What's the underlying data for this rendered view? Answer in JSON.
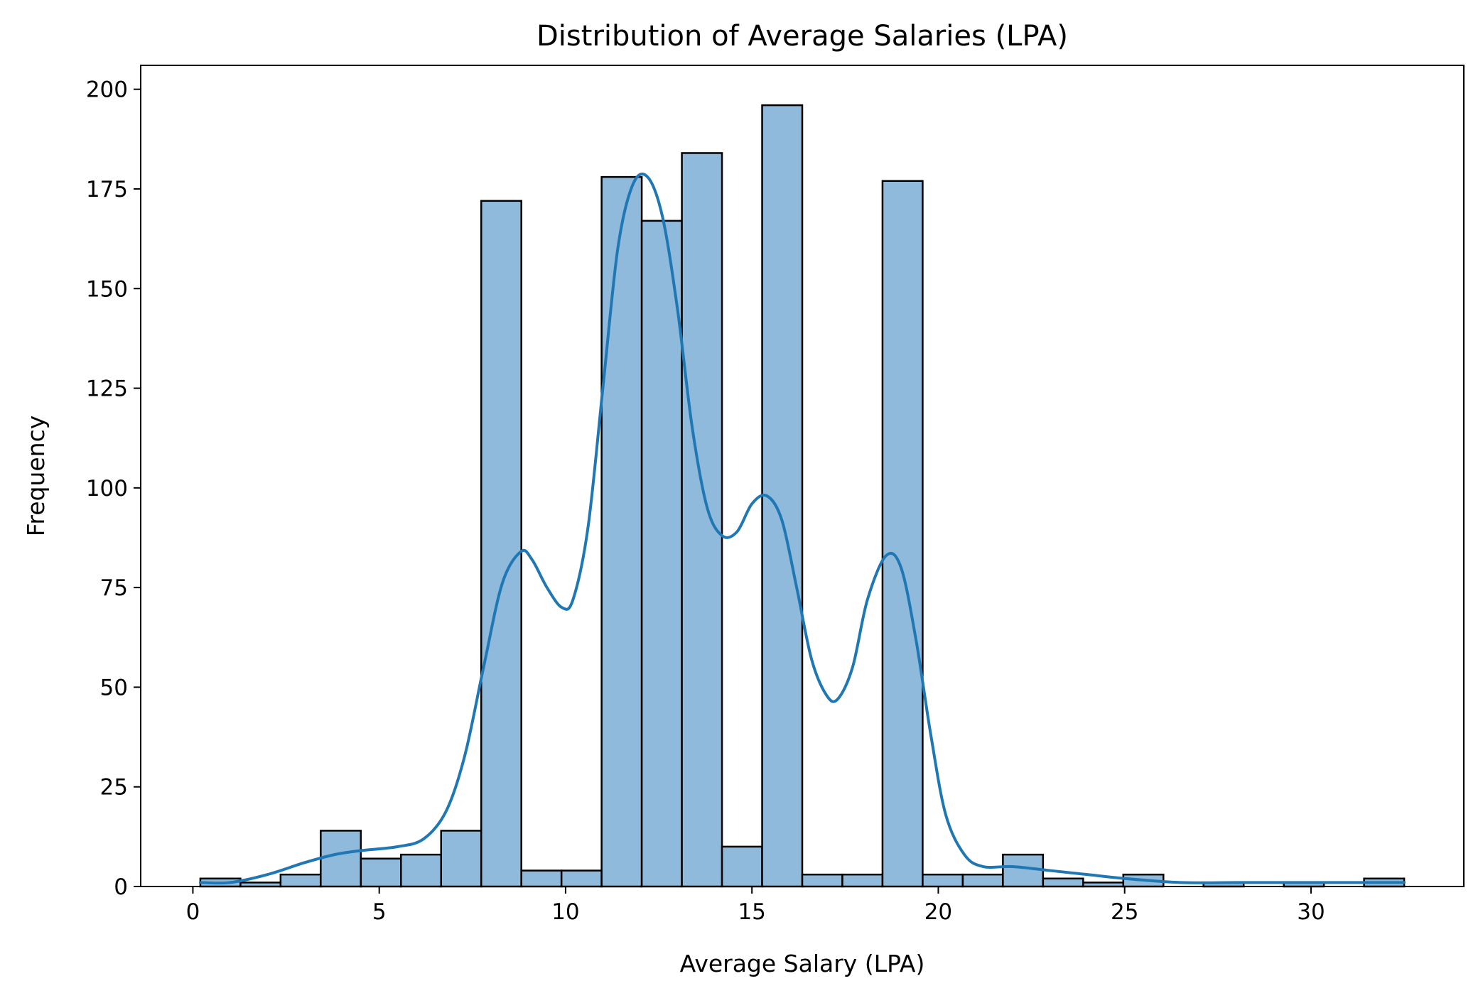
{
  "chart_data": {
    "type": "bar",
    "title": "Distribution of Average Salaries (LPA)",
    "xlabel": "Average Salary (LPA)",
    "ylabel": "Frequency",
    "xlim": [
      -1.4,
      34.1
    ],
    "ylim": [
      0,
      206
    ],
    "xticks": [
      0,
      5,
      10,
      15,
      20,
      25,
      30
    ],
    "yticks": [
      0,
      25,
      50,
      75,
      100,
      125,
      150,
      175,
      200
    ],
    "grid": false,
    "bar_color": "#8fbadb",
    "edge_color": "#000000",
    "bins": {
      "start": 0.2,
      "end": 32.5,
      "counts": [
        2,
        1,
        3,
        14,
        7,
        8,
        14,
        172,
        4,
        4,
        178,
        167,
        184,
        10,
        196,
        3,
        3,
        177,
        3,
        3,
        8,
        2,
        1,
        3,
        0,
        1,
        0,
        1,
        0,
        2
      ]
    },
    "kde": {
      "color": "#1f77b4",
      "x": [
        0.2,
        1.0,
        2.0,
        3.0,
        3.8,
        4.5,
        5.5,
        6.2,
        6.8,
        7.3,
        7.8,
        8.3,
        8.8,
        9.1,
        9.5,
        9.9,
        10.2,
        10.6,
        11.0,
        11.4,
        11.8,
        12.2,
        12.6,
        13.0,
        13.4,
        13.8,
        14.2,
        14.6,
        15.0,
        15.4,
        15.8,
        16.2,
        16.6,
        17.0,
        17.3,
        17.7,
        18.1,
        18.6,
        19.0,
        19.4,
        19.8,
        20.2,
        20.7,
        21.2,
        22.0,
        23.0,
        24.0,
        25.0,
        26.5,
        28.0,
        29.5,
        31.0,
        32.5
      ],
      "y": [
        1,
        1,
        3,
        6,
        8,
        9,
        10,
        12,
        19,
        33,
        55,
        76,
        84,
        82,
        75,
        70,
        72,
        90,
        125,
        160,
        176,
        178,
        168,
        145,
        115,
        95,
        88,
        89,
        96,
        98,
        92,
        75,
        57,
        48,
        47,
        55,
        72,
        83,
        80,
        62,
        38,
        18,
        8,
        5,
        5,
        4,
        3,
        2,
        1,
        1,
        1,
        1,
        1
      ]
    }
  }
}
